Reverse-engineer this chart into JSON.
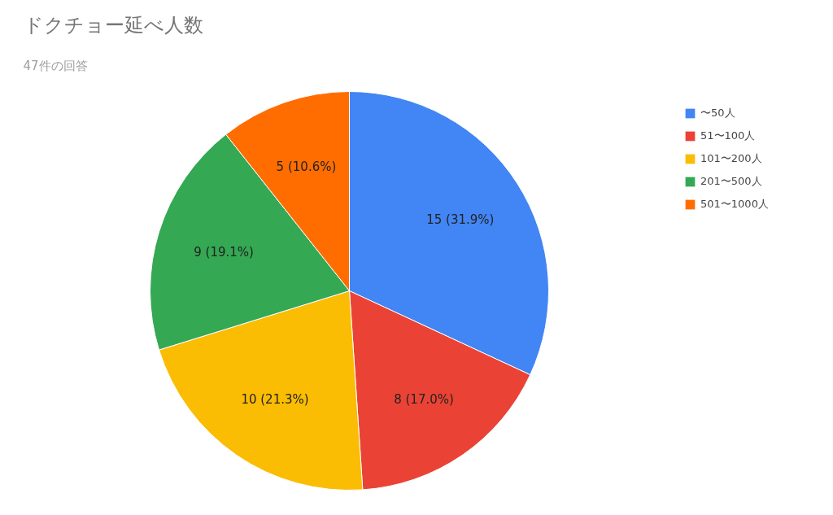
{
  "chart_data": {
    "type": "pie",
    "title": "ドクチョー延べ人数",
    "subtitle": "47件の回答",
    "categories": [
      "〜50人",
      "51〜100人",
      "101〜200人",
      "201〜500人",
      "501〜1000人"
    ],
    "values": [
      15,
      8,
      10,
      9,
      5
    ],
    "colors": [
      "#4285f4",
      "#ea4335",
      "#fbbc04",
      "#34a853",
      "#ff6d01"
    ],
    "value_labels": [
      "15 (31.9%)",
      "8 (17.0%)",
      "10 (21.3%)",
      "9 (19.1%)",
      "5 (10.6%)"
    ],
    "legend": "top right"
  }
}
